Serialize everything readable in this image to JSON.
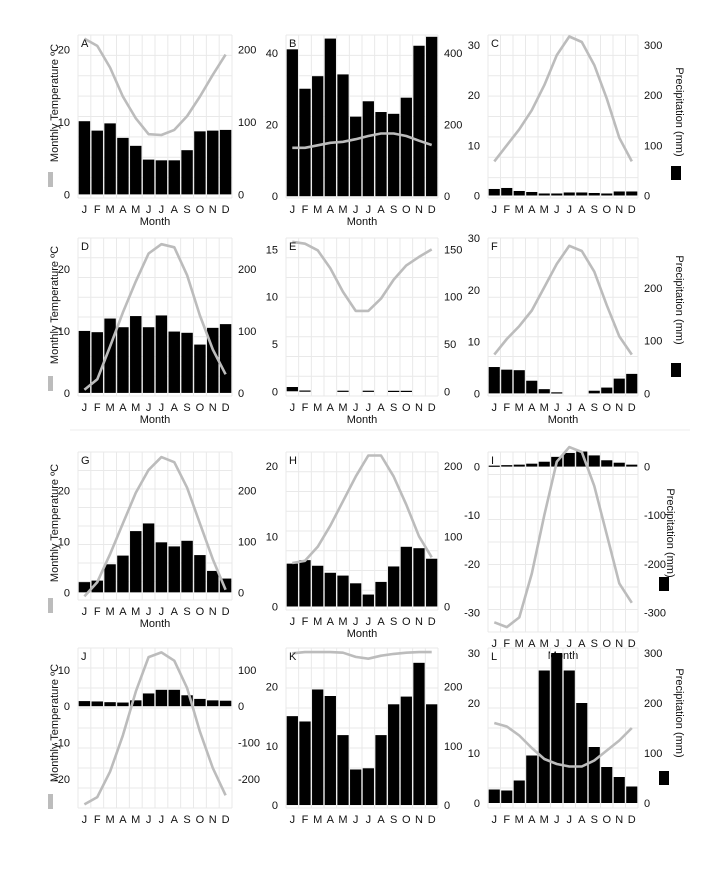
{
  "colors": {
    "bar": "#000000",
    "line": "#bcbcbc",
    "grid": "#e9e9e9",
    "axis": "#444444"
  },
  "y_label_left": "Monthly Temperature ºC",
  "y_label_right": "Precipitation (mm)",
  "chart_data": [
    {
      "type": "bar+line",
      "panel": "A",
      "xlabel": "Month",
      "categories": [
        "J",
        "F",
        "M",
        "A",
        "M",
        "J",
        "J",
        "A",
        "S",
        "O",
        "N",
        "D"
      ],
      "tick_labels": [
        "J",
        "F",
        "M",
        "A",
        "M",
        "J",
        "J",
        "A",
        "S",
        "O",
        "N",
        "D"
      ],
      "series": [
        {
          "name": "precipitation",
          "axis": "right",
          "kind": "bar",
          "values": [
            101,
            88,
            98,
            78,
            67,
            48,
            47,
            47,
            61,
            87,
            88,
            89
          ]
        },
        {
          "name": "temperature",
          "axis": "left",
          "kind": "line",
          "values": [
            21.5,
            20.5,
            17.5,
            13.5,
            10.5,
            8.3,
            8.2,
            8.9,
            10.8,
            13.5,
            16.5,
            19.3
          ]
        }
      ],
      "yleft": {
        "lim": [
          -0.5,
          22
        ],
        "ticks": [
          0,
          10,
          20
        ]
      },
      "yright": {
        "lim": [
          -5,
          220
        ],
        "ticks": [
          0,
          100,
          200
        ]
      }
    },
    {
      "type": "bar+line",
      "panel": "B",
      "xlabel": "Month",
      "categories": [
        "J",
        "F",
        "M",
        "A",
        "M",
        "J",
        "J",
        "A",
        "S",
        "O",
        "N",
        "D"
      ],
      "tick_labels": [
        "J",
        "F",
        "M",
        "A",
        "M",
        "J",
        "J",
        "A",
        "S",
        "O",
        "N",
        "D"
      ],
      "series": [
        {
          "name": "precipitation",
          "axis": "right",
          "kind": "bar",
          "values": [
            410,
            300,
            335,
            440,
            340,
            222,
            265,
            235,
            230,
            275,
            420,
            445
          ]
        },
        {
          "name": "temperature",
          "axis": "left",
          "kind": "line",
          "values": [
            13.5,
            13.5,
            14.2,
            14.9,
            15.2,
            15.9,
            16.8,
            17.5,
            17.5,
            16.8,
            15.5,
            14.3
          ]
        }
      ],
      "yleft": {
        "lim": [
          -0.5,
          45
        ],
        "ticks": [
          0,
          20,
          40
        ]
      },
      "yright": {
        "lim": [
          -5,
          450
        ],
        "ticks": [
          0,
          200,
          400
        ]
      }
    },
    {
      "type": "bar+line",
      "panel": "C",
      "xlabel": "",
      "categories": [
        "J",
        "F",
        "M",
        "A",
        "M",
        "J",
        "J",
        "A",
        "S",
        "O",
        "N",
        "D"
      ],
      "tick_labels": [
        "J",
        "F",
        "M",
        "A",
        "M",
        "J",
        "J",
        "A",
        "S",
        "O",
        "N",
        "D"
      ],
      "series": [
        {
          "name": "precipitation",
          "axis": "right",
          "kind": "bar",
          "values": [
            13,
            15,
            9,
            7,
            4,
            4,
            6,
            6,
            5,
            4,
            8,
            8
          ]
        },
        {
          "name": "temperature",
          "axis": "left",
          "kind": "line",
          "values": [
            6.8,
            10.0,
            13.2,
            17.0,
            22.0,
            28.0,
            31.7,
            30.6,
            26.0,
            19.3,
            11.5,
            6.8
          ]
        }
      ],
      "yleft": {
        "lim": [
          -0.5,
          32
        ],
        "ticks": [
          0,
          10,
          20,
          30
        ]
      },
      "yright": {
        "lim": [
          -5,
          320
        ],
        "ticks": [
          0,
          100,
          200,
          300
        ]
      }
    },
    {
      "type": "bar+line",
      "panel": "D",
      "xlabel": "Month",
      "categories": [
        "J",
        "F",
        "M",
        "A",
        "M",
        "J",
        "J",
        "A",
        "S",
        "O",
        "N",
        "D"
      ],
      "tick_labels": [
        "J",
        "F",
        "M",
        "A",
        "M",
        "J",
        "J",
        "A",
        "S",
        "O",
        "N",
        "D"
      ],
      "series": [
        {
          "name": "precipitation",
          "axis": "right",
          "kind": "bar",
          "values": [
            100,
            98,
            120,
            106,
            124,
            106,
            125,
            99,
            97,
            78,
            105,
            111
          ]
        },
        {
          "name": "temperature",
          "axis": "left",
          "kind": "line",
          "values": [
            0.5,
            2.2,
            7.5,
            13.0,
            18.0,
            22.5,
            24.0,
            23.5,
            19.0,
            12.5,
            7.0,
            3.0
          ]
        }
      ],
      "yleft": {
        "lim": [
          -0.5,
          25
        ],
        "ticks": [
          0,
          10,
          20
        ]
      },
      "yright": {
        "lim": [
          -5,
          250
        ],
        "ticks": [
          0,
          100,
          200
        ]
      }
    },
    {
      "type": "bar+line",
      "panel": "E",
      "xlabel": "Month",
      "categories": [
        "J",
        "F",
        "M",
        "A",
        "M",
        "J",
        "J",
        "A",
        "S",
        "O",
        "N",
        "D"
      ],
      "tick_labels": [
        "J",
        "F",
        "M",
        "A",
        "M",
        "J",
        "J",
        "A",
        "S",
        "O",
        "N",
        "D"
      ],
      "series": [
        {
          "name": "precipitation",
          "axis": "right",
          "kind": "bar",
          "values": [
            4.5,
            0.8,
            0,
            0,
            0.6,
            0,
            0.6,
            0,
            0.5,
            0.5,
            0,
            0
          ]
        },
        {
          "name": "temperature",
          "axis": "left",
          "kind": "line",
          "values": [
            15.8,
            15.6,
            14.9,
            13.0,
            10.5,
            8.5,
            8.5,
            9.8,
            11.8,
            13.3,
            14.2,
            15.0
          ]
        }
      ],
      "yleft": {
        "lim": [
          -0.5,
          16.2
        ],
        "ticks": [
          0,
          5,
          10,
          15
        ]
      },
      "yright": {
        "lim": [
          -5,
          162
        ],
        "ticks": [
          0,
          50,
          100,
          150
        ]
      }
    },
    {
      "type": "bar+line",
      "panel": "F",
      "xlabel": "Month",
      "categories": [
        "J",
        "F",
        "M",
        "A",
        "M",
        "J",
        "J",
        "A",
        "S",
        "O",
        "N",
        "D"
      ],
      "tick_labels": [
        "J",
        "F",
        "M",
        "A",
        "M",
        "J",
        "J",
        "A",
        "S",
        "O",
        "N",
        "D"
      ],
      "series": [
        {
          "name": "precipitation",
          "axis": "right",
          "kind": "bar",
          "values": [
            50,
            45,
            44,
            24,
            8,
            2,
            0,
            0,
            5,
            11,
            28,
            37
          ]
        },
        {
          "name": "temperature",
          "axis": "left",
          "kind": "line",
          "values": [
            7.5,
            10.5,
            13.0,
            16.0,
            20.5,
            25.0,
            28.5,
            27.5,
            23.5,
            17.0,
            11.0,
            7.5
          ]
        }
      ],
      "yleft": {
        "lim": [
          -0.5,
          30
        ],
        "ticks": [
          0,
          10,
          20,
          30
        ]
      },
      "yright": {
        "lim": [
          -5,
          295
        ],
        "ticks": [
          0,
          100,
          200
        ]
      }
    },
    {
      "type": "bar+line",
      "panel": "G",
      "xlabel": "Month",
      "categories": [
        "J",
        "F",
        "M",
        "A",
        "M",
        "J",
        "J",
        "A",
        "S",
        "O",
        "N",
        "D"
      ],
      "tick_labels": [
        "J",
        "F",
        "M",
        "A",
        "M",
        "J",
        "J",
        "A",
        "S",
        "O",
        "N",
        "D"
      ],
      "series": [
        {
          "name": "precipitation",
          "axis": "right",
          "kind": "bar",
          "values": [
            20,
            23,
            55,
            72,
            120,
            135,
            98,
            90,
            101,
            73,
            42,
            27
          ]
        },
        {
          "name": "temperature",
          "axis": "left",
          "kind": "line",
          "values": [
            -0.8,
            2.0,
            7.5,
            13.5,
            19.5,
            24.0,
            26.5,
            25.5,
            20.5,
            13.5,
            6.5,
            0.5
          ]
        }
      ],
      "yleft": {
        "lim": [
          -1.5,
          27.5
        ],
        "ticks": [
          0,
          10,
          20
        ]
      },
      "yright": {
        "lim": [
          -15,
          275
        ],
        "ticks": [
          0,
          100,
          200
        ]
      }
    },
    {
      "type": "bar+line",
      "panel": "H",
      "xlabel": "Month",
      "categories": [
        "J",
        "F",
        "M",
        "A",
        "M",
        "J",
        "J",
        "A",
        "S",
        "O",
        "N",
        "D"
      ],
      "tick_labels": [
        "J",
        "F",
        "M",
        "A",
        "M",
        "J",
        "J",
        "A",
        "S",
        "O",
        "N",
        "D"
      ],
      "series": [
        {
          "name": "precipitation",
          "axis": "right",
          "kind": "bar",
          "values": [
            61,
            66,
            58,
            48,
            44,
            33,
            17,
            35,
            57,
            85,
            83,
            68
          ]
        },
        {
          "name": "temperature",
          "axis": "left",
          "kind": "line",
          "values": [
            6.2,
            6.5,
            8.5,
            11.5,
            15.0,
            18.5,
            21.5,
            21.5,
            18.5,
            14.5,
            10.0,
            7.0
          ]
        }
      ],
      "yleft": {
        "lim": [
          -0.5,
          22
        ],
        "ticks": [
          0,
          10,
          20
        ]
      },
      "yright": {
        "lim": [
          -5,
          220
        ],
        "ticks": [
          0,
          100,
          200
        ]
      }
    },
    {
      "type": "bar+line",
      "panel": "I",
      "xlabel": "Month",
      "categories": [
        "J",
        "F",
        "M",
        "A",
        "M",
        "J",
        "J",
        "A",
        "S",
        "O",
        "N",
        "D"
      ],
      "tick_labels": [
        "J",
        "F",
        "M",
        "A",
        "M",
        "J",
        "J",
        "A",
        "S",
        "O",
        "N",
        "D"
      ],
      "series": [
        {
          "name": "precipitation",
          "axis": "right",
          "kind": "bar",
          "values": [
            2,
            3,
            4,
            6,
            10,
            20,
            28,
            31,
            23,
            13,
            8,
            4
          ]
        },
        {
          "name": "temperature",
          "axis": "left",
          "kind": "line",
          "values": [
            -32.0,
            -33.0,
            -31.0,
            -22.0,
            -10.0,
            1.0,
            4.0,
            3.0,
            -4.0,
            -14.0,
            -24.0,
            -28.0
          ]
        }
      ],
      "yleft": {
        "lim": [
          -34,
          3
        ],
        "ticks": [
          -30,
          -20,
          -10,
          0
        ]
      },
      "yright": {
        "lim": [
          -340,
          30
        ],
        "ticks": [
          -300,
          -200,
          -100,
          0
        ]
      }
    },
    {
      "type": "bar+line",
      "panel": "J",
      "xlabel": "",
      "categories": [
        "J",
        "F",
        "M",
        "A",
        "M",
        "J",
        "J",
        "A",
        "S",
        "O",
        "N",
        "D"
      ],
      "tick_labels": [
        "J",
        "F",
        "M",
        "A",
        "M",
        "J",
        "J",
        "A",
        "S",
        "O",
        "N",
        "D"
      ],
      "series": [
        {
          "name": "precipitation",
          "axis": "right",
          "kind": "bar",
          "values": [
            14,
            13,
            11,
            10,
            16,
            35,
            45,
            45,
            30,
            20,
            16,
            15
          ]
        },
        {
          "name": "temperature",
          "axis": "left",
          "kind": "line",
          "values": [
            -27.0,
            -25.0,
            -18.0,
            -8.0,
            4.0,
            13.5,
            14.8,
            12.5,
            5.0,
            -7.0,
            -17.0,
            -24.5
          ]
        }
      ],
      "yleft": {
        "lim": [
          -28,
          16
        ],
        "ticks": [
          -20,
          -10,
          0,
          10
        ]
      },
      "yright": {
        "lim": [
          -280,
          160
        ],
        "ticks": [
          -200,
          -100,
          0,
          100
        ]
      }
    },
    {
      "type": "bar+line",
      "panel": "K",
      "xlabel": "",
      "categories": [
        "J",
        "F",
        "M",
        "A",
        "M",
        "J",
        "J",
        "A",
        "S",
        "O",
        "N",
        "D"
      ],
      "tick_labels": [
        "J",
        "F",
        "M",
        "A",
        "M",
        "J",
        "J",
        "A",
        "S",
        "O",
        "N",
        "D"
      ],
      "series": [
        {
          "name": "precipitation",
          "axis": "right",
          "kind": "bar",
          "values": [
            150,
            141,
            195,
            184,
            118,
            60,
            62,
            118,
            170,
            183,
            240,
            170
          ]
        },
        {
          "name": "temperature",
          "axis": "left",
          "kind": "line",
          "values": [
            25.6,
            25.8,
            25.8,
            25.8,
            25.7,
            25.0,
            24.7,
            25.2,
            25.5,
            25.7,
            25.8,
            25.8
          ]
        }
      ],
      "yleft": {
        "lim": [
          -0.5,
          26.5
        ],
        "ticks": [
          0,
          10,
          20
        ]
      },
      "yright": {
        "lim": [
          -5,
          265
        ],
        "ticks": [
          0,
          100,
          200
        ]
      }
    },
    {
      "type": "bar+line",
      "panel": "L",
      "xlabel": "",
      "categories": [
        "J",
        "F",
        "M",
        "A",
        "M",
        "J",
        "J",
        "A",
        "S",
        "O",
        "N",
        "D"
      ],
      "tick_labels": [
        "J",
        "F",
        "M",
        "A",
        "M",
        "J",
        "J",
        "A",
        "S",
        "O",
        "N",
        "D"
      ],
      "series": [
        {
          "name": "precipitation",
          "axis": "right",
          "kind": "bar",
          "values": [
            27,
            25,
            45,
            95,
            265,
            300,
            265,
            200,
            112,
            72,
            52,
            33
          ]
        },
        {
          "name": "temperature",
          "axis": "left",
          "kind": "line",
          "values": [
            16.0,
            15.3,
            13.5,
            11.0,
            8.8,
            7.8,
            7.3,
            7.3,
            8.5,
            10.5,
            12.5,
            15.0
          ]
        }
      ],
      "yleft": {
        "lim": [
          -1,
          31
        ],
        "ticks": [
          0,
          10,
          20,
          30
        ]
      },
      "yright": {
        "lim": [
          -10,
          310
        ],
        "ticks": [
          0,
          100,
          200,
          300
        ]
      }
    }
  ]
}
